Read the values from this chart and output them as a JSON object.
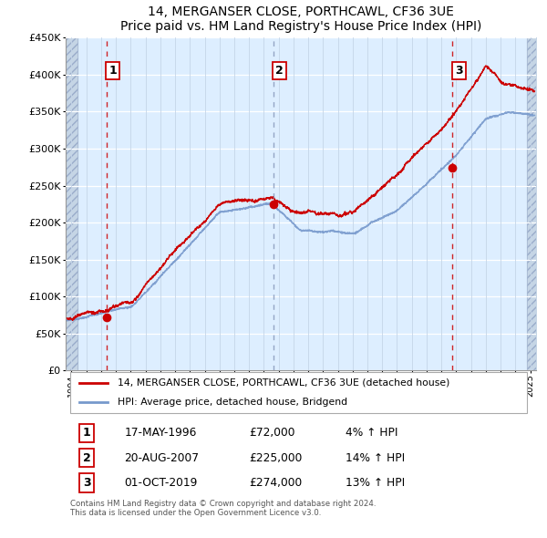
{
  "title": "14, MERGANSER CLOSE, PORTHCAWL, CF36 3UE",
  "subtitle": "Price paid vs. HM Land Registry's House Price Index (HPI)",
  "legend_line1": "14, MERGANSER CLOSE, PORTHCAWL, CF36 3UE (detached house)",
  "legend_line2": "HPI: Average price, detached house, Bridgend",
  "footer": "Contains HM Land Registry data © Crown copyright and database right 2024.\nThis data is licensed under the Open Government Licence v3.0.",
  "transaction_color": "#cc0000",
  "hpi_color": "#7799cc",
  "dashed_line_color_red": "#cc0000",
  "dashed_line_color_blue": "#8899bb",
  "background_plot": "#ddeeff",
  "ylim": [
    0,
    450000
  ],
  "yticks": [
    0,
    50000,
    100000,
    150000,
    200000,
    250000,
    300000,
    350000,
    400000,
    450000
  ],
  "xmin": 1993.6,
  "xmax": 2025.4,
  "transactions": [
    {
      "date_num": 1996.37,
      "price": 72000,
      "label": "1",
      "dash_color": "#cc0000"
    },
    {
      "date_num": 2007.63,
      "price": 225000,
      "label": "2",
      "dash_color": "#8899bb"
    },
    {
      "date_num": 2019.75,
      "price": 274000,
      "label": "3",
      "dash_color": "#cc0000"
    }
  ],
  "table_rows": [
    {
      "num": "1",
      "date": "17-MAY-1996",
      "price": "£72,000",
      "change": "4% ↑ HPI"
    },
    {
      "num": "2",
      "date": "20-AUG-2007",
      "price": "£225,000",
      "change": "14% ↑ HPI"
    },
    {
      "num": "3",
      "date": "01-OCT-2019",
      "price": "£274,000",
      "change": "13% ↑ HPI"
    }
  ]
}
